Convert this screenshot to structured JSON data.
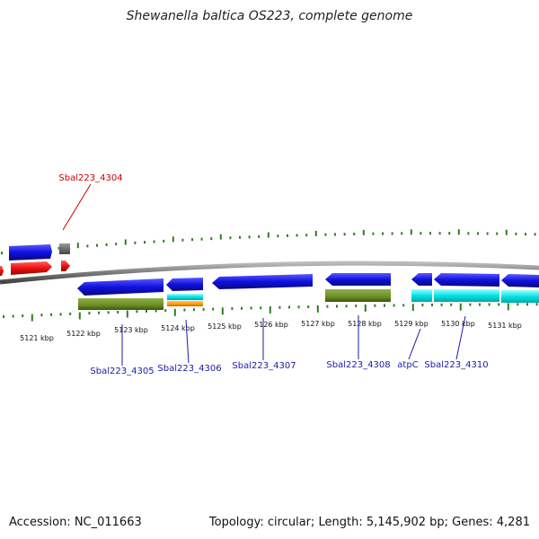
{
  "title": "Shewanella baltica OS223, complete genome",
  "footer": {
    "accession": "Accession: NC_011663",
    "summary": "Topology: circular; Length: 5,145,902 bp; Genes: 4,281"
  },
  "scale": {
    "ticks": [
      "5121 kbp",
      "5122 kbp",
      "5123 kbp",
      "5124 kbp",
      "5125 kbp",
      "5126 kbp",
      "5127 kbp",
      "5128 kbp",
      "5129 kbp",
      "5130 kbp",
      "5131 kbp"
    ]
  },
  "genes": [
    {
      "label": "Sbal223_4304",
      "color": "#cc0000"
    },
    {
      "label": "Sbal223_4305",
      "color": "#1a1aaa"
    },
    {
      "label": "Sbal223_4306",
      "color": "#1a1aaa"
    },
    {
      "label": "Sbal223_4307",
      "color": "#1a1aaa"
    },
    {
      "label": "Sbal223_4308",
      "color": "#1a1aaa"
    },
    {
      "label": "atpC",
      "color": "#1a1aaa"
    },
    {
      "label": "Sbal223_4310",
      "color": "#1a1aaa"
    }
  ],
  "colors": {
    "backbone": "#7a7a7a",
    "tick": "#2e7d1e",
    "cds_blue": "#1010e0",
    "cds_red": "#ee1111",
    "cog_olive": "#6b8e23",
    "cog_cyan": "#00e5e5",
    "cog_orange": "#ff9900",
    "grey_block": "#666666"
  }
}
